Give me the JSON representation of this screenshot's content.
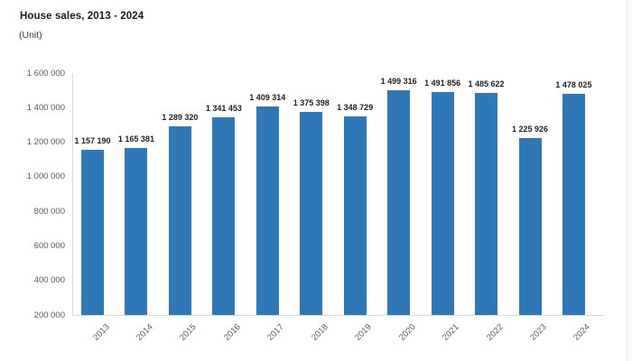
{
  "chart_data": {
    "type": "bar",
    "title": "House sales, 2013 - 2024",
    "unit_label": "(Unit)",
    "categories": [
      "2013",
      "2014",
      "2015",
      "2016",
      "2017",
      "2018",
      "2019",
      "2020",
      "2021",
      "2022",
      "2023",
      "2024"
    ],
    "values": [
      1157190,
      1165381,
      1289320,
      1341453,
      1409314,
      1375398,
      1348729,
      1499316,
      1491856,
      1485622,
      1225926,
      1478025
    ],
    "data_labels": [
      "1 157 190",
      "1 165 381",
      "1 289 320",
      "1 341 453",
      "1 409 314",
      "1 375 398",
      "1 348 729",
      "1 499 316",
      "1 491 856",
      "1 485 622",
      "1 225 926",
      "1 478 025"
    ],
    "ylabel": "",
    "xlabel": "",
    "ylim": [
      200000,
      1600000
    ],
    "ytick_step": 200000,
    "ytick_labels": [
      "200 000",
      "400 000",
      "600 000",
      "800 000",
      "1 000 000",
      "1 200 000",
      "1 400 000",
      "1 600 000"
    ],
    "grid": false,
    "legend": "none",
    "bar_color": "#2e78b7"
  },
  "colors": {
    "bar": "#2e78b7",
    "axis_line": "#d9d9d9",
    "tick_label": "#595959",
    "data_label": "#1f1f1f",
    "title": "#1a1a1a"
  }
}
